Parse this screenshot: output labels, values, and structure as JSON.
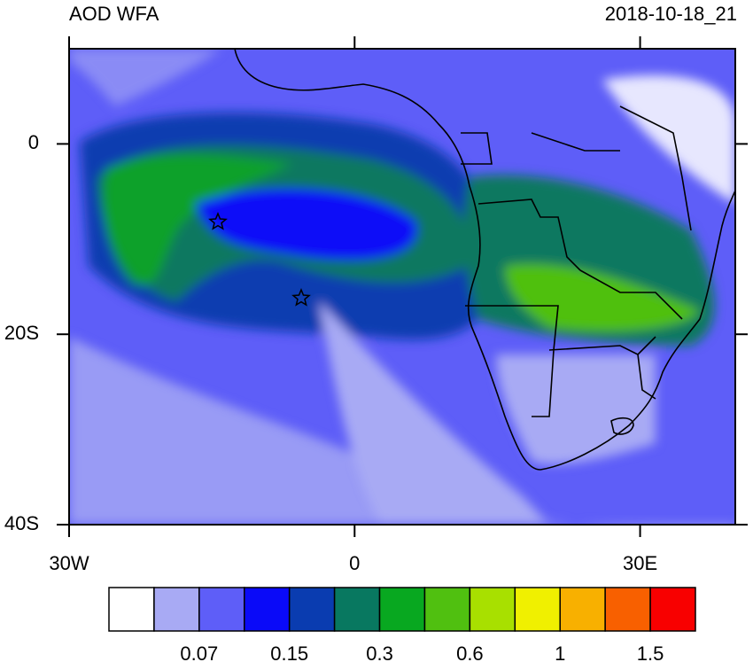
{
  "title": "AOD WFA",
  "date": "2018-10-18_21",
  "map": {
    "xlim": [
      -30,
      40
    ],
    "ylim": [
      -40,
      10
    ],
    "xticks": [
      {
        "value": -30,
        "label": "30W"
      },
      0,
      {
        "value": 30,
        "label": "30E"
      }
    ],
    "yticks": [
      0,
      {
        "value": -20,
        "label": "20S"
      },
      {
        "value": -40,
        "label": "40S"
      }
    ]
  },
  "colorbar": {
    "colors": [
      "#ffffff",
      "#a8aaf4",
      "#5e5ef8",
      "#0a0af8",
      "#0a3cb0",
      "#087860",
      "#08a820",
      "#50c010",
      "#a8e000",
      "#f0f000",
      "#f8b000",
      "#f86000",
      "#f80000"
    ],
    "labels": [
      0.07,
      0.15,
      0.3,
      0.6,
      1,
      1.5
    ]
  }
}
